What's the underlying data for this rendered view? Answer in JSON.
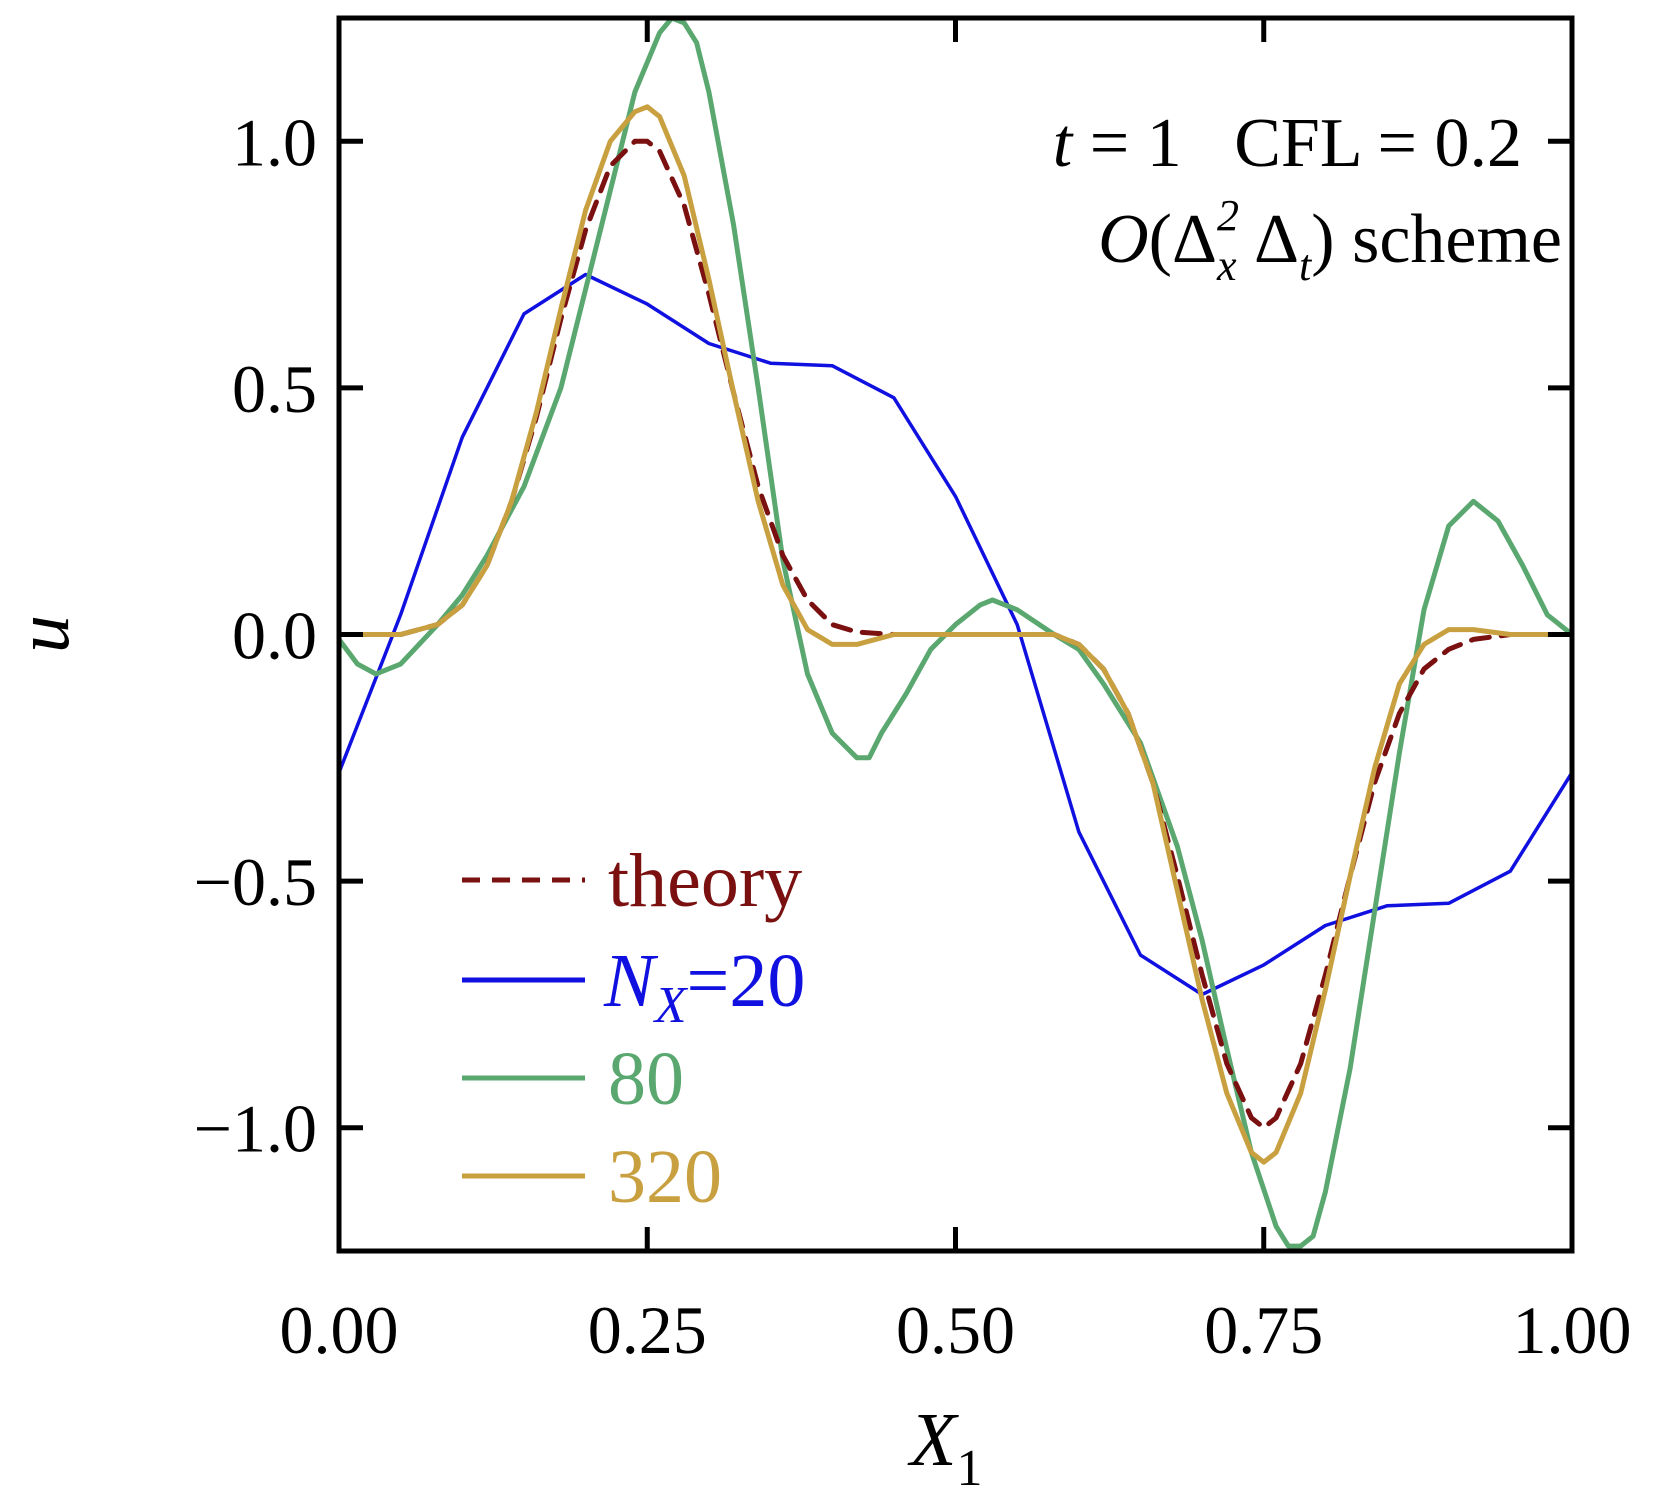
{
  "chart_data": {
    "type": "line",
    "xlabel": "X",
    "xlabel_sub": "1",
    "ylabel": "u",
    "xlim": [
      0,
      1
    ],
    "ylim": [
      -1.25,
      1.25
    ],
    "xticks": [
      0,
      0.25,
      0.5,
      0.75,
      1
    ],
    "xtick_labels": [
      "0.00",
      "0.25",
      "0.50",
      "0.75",
      "1.00"
    ],
    "yticks": [
      1,
      0.5,
      0,
      -0.5,
      -1
    ],
    "ytick_labels": [
      "1.0",
      "0.5",
      "0.0",
      "−0.5",
      "−1.0"
    ],
    "grid": false,
    "legend_position": "lower-left",
    "annotations": {
      "line1_t": "t",
      "line1_rest": " = 1   CFL = 0.2",
      "line2_O": "O",
      "line2_open": "(Δ",
      "line2_sup": "2",
      "line2_subx": "x",
      "line2_mid": " Δ",
      "line2_subt": "t",
      "line2_close": ") scheme"
    },
    "legend": {
      "theory": "theory",
      "n_main": "N",
      "n_sub": "X",
      "n_rest": "=20",
      "l80": "80",
      "l320": "320"
    },
    "series": [
      {
        "id": "theory",
        "color": "#7a1010",
        "dash": true,
        "x": [
          0,
          0.05,
          0.08,
          0.1,
          0.12,
          0.14,
          0.16,
          0.18,
          0.2,
          0.22,
          0.24,
          0.25,
          0.26,
          0.28,
          0.3,
          0.32,
          0.34,
          0.36,
          0.38,
          0.4,
          0.42,
          0.45,
          0.5,
          0.55,
          0.58,
          0.6,
          0.62,
          0.64,
          0.66,
          0.68,
          0.7,
          0.72,
          0.74,
          0.75,
          0.76,
          0.78,
          0.8,
          0.82,
          0.84,
          0.86,
          0.88,
          0.9,
          0.92,
          0.95,
          1.0
        ],
        "y": [
          0,
          0.0,
          0.02,
          0.06,
          0.14,
          0.27,
          0.44,
          0.64,
          0.82,
          0.95,
          1.0,
          1.0,
          0.98,
          0.87,
          0.69,
          0.49,
          0.3,
          0.16,
          0.07,
          0.02,
          0.005,
          0,
          0,
          0,
          0,
          -0.02,
          -0.07,
          -0.16,
          -0.3,
          -0.49,
          -0.69,
          -0.87,
          -0.98,
          -1.0,
          -0.98,
          -0.87,
          -0.69,
          -0.49,
          -0.3,
          -0.16,
          -0.07,
          -0.03,
          -0.01,
          0,
          0
        ]
      },
      {
        "id": "nx20",
        "color": "#1010e0",
        "dash": false,
        "x": [
          0,
          0.05,
          0.1,
          0.15,
          0.2,
          0.25,
          0.3,
          0.35,
          0.4,
          0.45,
          0.5,
          0.55,
          0.6,
          0.65,
          0.7,
          0.75,
          0.8,
          0.85,
          0.9,
          0.95,
          1.0
        ],
        "y": [
          -0.28,
          0.04,
          0.4,
          0.65,
          0.73,
          0.67,
          0.59,
          0.55,
          0.545,
          0.48,
          0.28,
          0.02,
          -0.4,
          -0.65,
          -0.73,
          -0.67,
          -0.59,
          -0.55,
          -0.545,
          -0.48,
          -0.28
        ]
      },
      {
        "id": "nx80",
        "color": "#5aa870",
        "dash": false,
        "x": [
          0,
          0.015,
          0.03,
          0.05,
          0.08,
          0.1,
          0.12,
          0.15,
          0.18,
          0.2,
          0.22,
          0.24,
          0.26,
          0.27,
          0.28,
          0.29,
          0.3,
          0.32,
          0.34,
          0.36,
          0.38,
          0.4,
          0.42,
          0.43,
          0.44,
          0.46,
          0.48,
          0.5,
          0.52,
          0.53,
          0.55,
          0.58,
          0.6,
          0.62,
          0.65,
          0.68,
          0.7,
          0.72,
          0.74,
          0.76,
          0.77,
          0.78,
          0.79,
          0.8,
          0.82,
          0.84,
          0.86,
          0.88,
          0.9,
          0.92,
          0.93,
          0.94,
          0.96,
          0.98,
          1.0
        ],
        "y": [
          -0.01,
          -0.06,
          -0.08,
          -0.06,
          0.02,
          0.08,
          0.16,
          0.3,
          0.5,
          0.7,
          0.9,
          1.1,
          1.22,
          1.25,
          1.24,
          1.2,
          1.1,
          0.83,
          0.5,
          0.15,
          -0.08,
          -0.2,
          -0.25,
          -0.25,
          -0.2,
          -0.12,
          -0.03,
          0.02,
          0.06,
          0.07,
          0.05,
          0.0,
          -0.03,
          -0.1,
          -0.22,
          -0.43,
          -0.62,
          -0.84,
          -1.05,
          -1.2,
          -1.24,
          -1.24,
          -1.22,
          -1.13,
          -0.88,
          -0.56,
          -0.24,
          0.05,
          0.22,
          0.27,
          0.25,
          0.23,
          0.14,
          0.04,
          0.0
        ]
      },
      {
        "id": "nx320",
        "color": "#c8a040",
        "dash": false,
        "x": [
          0,
          0.05,
          0.08,
          0.1,
          0.12,
          0.14,
          0.16,
          0.18,
          0.2,
          0.22,
          0.24,
          0.25,
          0.26,
          0.28,
          0.3,
          0.32,
          0.34,
          0.36,
          0.38,
          0.4,
          0.42,
          0.45,
          0.5,
          0.55,
          0.58,
          0.6,
          0.62,
          0.64,
          0.66,
          0.68,
          0.7,
          0.72,
          0.74,
          0.75,
          0.76,
          0.78,
          0.8,
          0.82,
          0.84,
          0.86,
          0.88,
          0.9,
          0.92,
          0.95,
          1.0
        ],
        "y": [
          0,
          0.0,
          0.02,
          0.06,
          0.14,
          0.27,
          0.45,
          0.66,
          0.86,
          1.0,
          1.06,
          1.07,
          1.05,
          0.93,
          0.72,
          0.49,
          0.27,
          0.1,
          0.01,
          -0.02,
          -0.02,
          0,
          0,
          0,
          0,
          -0.02,
          -0.07,
          -0.16,
          -0.3,
          -0.52,
          -0.74,
          -0.93,
          -1.05,
          -1.07,
          -1.05,
          -0.93,
          -0.72,
          -0.49,
          -0.27,
          -0.1,
          -0.02,
          0.01,
          0.01,
          0.0,
          0
        ]
      }
    ]
  }
}
